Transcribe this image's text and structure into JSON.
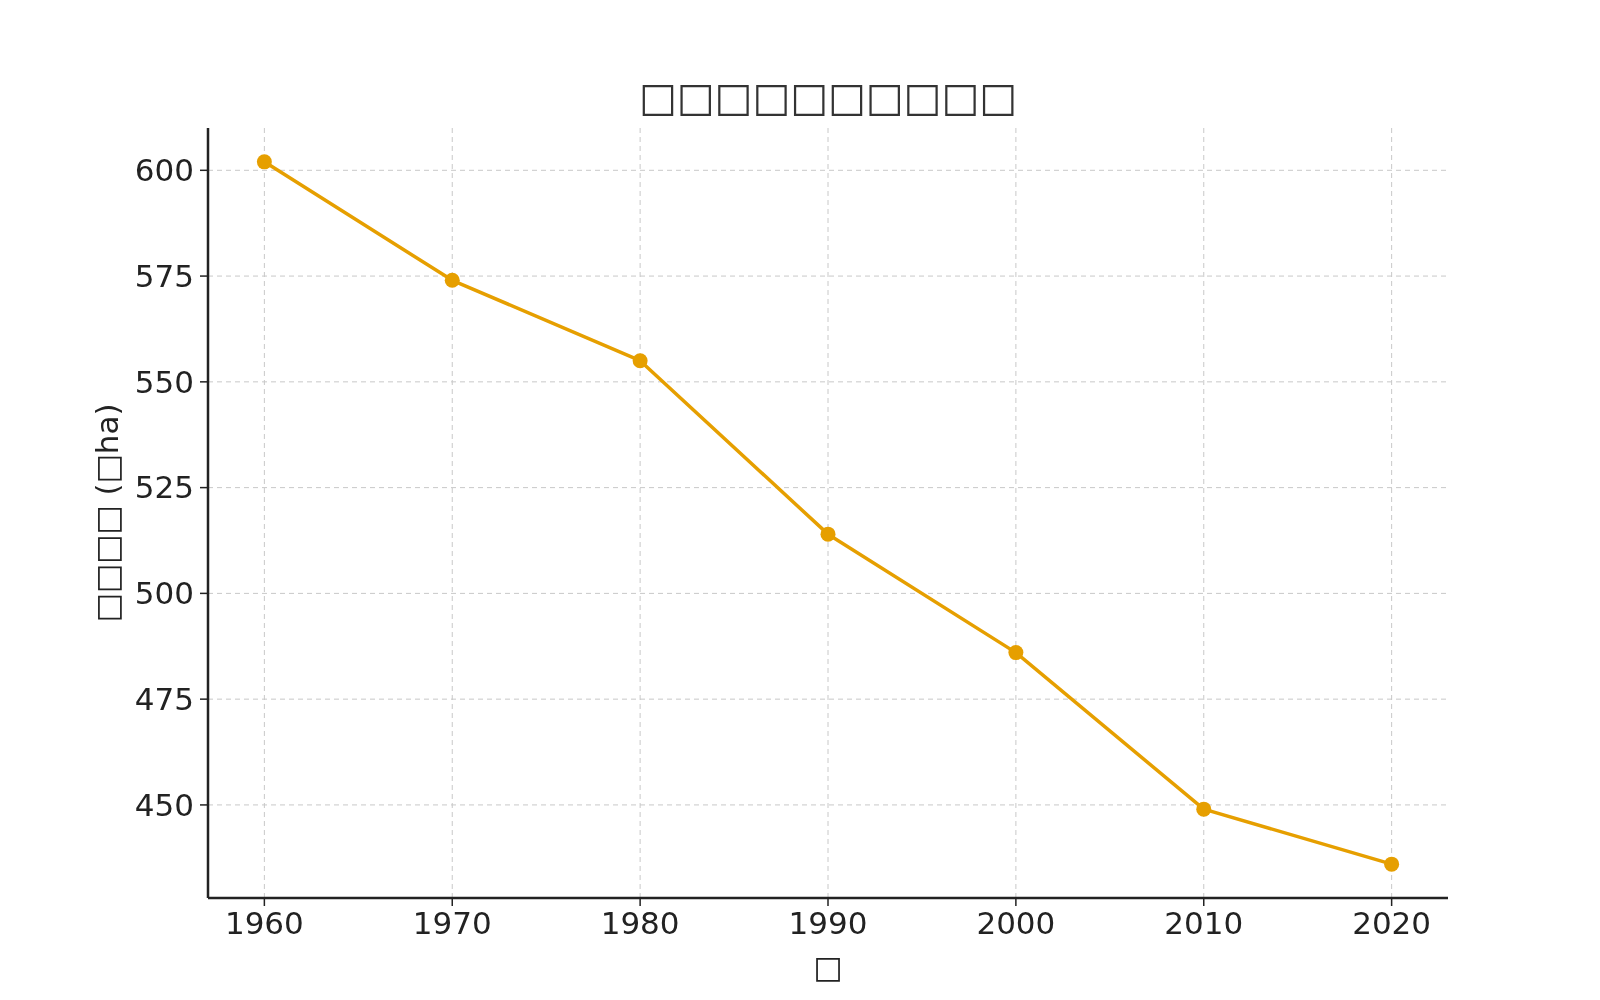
{
  "chart_data": {
    "type": "line",
    "title": "□□□□□□□□□□",
    "xlabel": "□",
    "ylabel": "□□□□ (□ha)",
    "x": [
      1960,
      1970,
      1980,
      1990,
      2000,
      2010,
      2020
    ],
    "series": [
      {
        "color": "#e69f00",
        "values": [
          602,
          574,
          555,
          514,
          486,
          449,
          436
        ]
      }
    ],
    "xlim": [
      1957,
      2023
    ],
    "xticks": [
      1960,
      1970,
      1980,
      1990,
      2000,
      2010,
      2020
    ],
    "ylim": [
      428,
      610
    ],
    "yticks": [
      450,
      475,
      500,
      525,
      550,
      575,
      600
    ],
    "grid": true,
    "marker": "circle",
    "line_style": "solid"
  }
}
